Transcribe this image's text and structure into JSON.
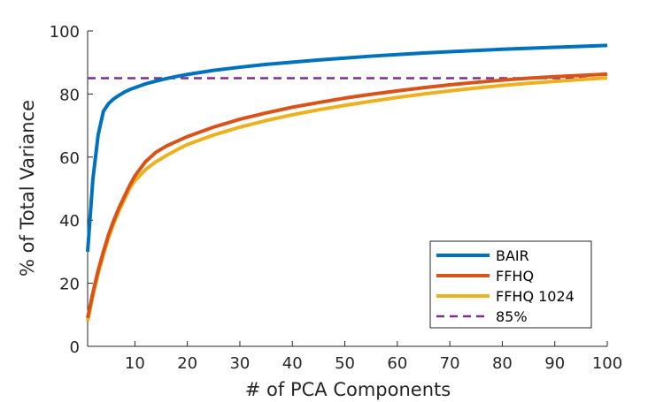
{
  "chart_data": {
    "type": "line",
    "title": "",
    "xlabel": "# of PCA Components",
    "ylabel": "% of Total Variance",
    "xlim": [
      1,
      100
    ],
    "ylim": [
      0,
      100
    ],
    "xticks": [
      10,
      20,
      30,
      40,
      50,
      60,
      70,
      80,
      90,
      100
    ],
    "yticks": [
      0,
      20,
      40,
      60,
      80,
      100
    ],
    "grid": false,
    "legend_position": "bottom-right",
    "series": [
      {
        "name": "BAIR",
        "color": "#0072BD",
        "style": "solid",
        "x": [
          1,
          2,
          3,
          4,
          5,
          6,
          7,
          8,
          9,
          10,
          12,
          14,
          16,
          18,
          20,
          25,
          30,
          35,
          40,
          45,
          50,
          55,
          60,
          65,
          70,
          75,
          80,
          85,
          90,
          95,
          100
        ],
        "y": [
          30,
          53,
          67,
          74.5,
          77,
          78.5,
          79.6,
          80.6,
          81.4,
          82,
          83.2,
          84.1,
          84.9,
          85.6,
          86.2,
          87.5,
          88.5,
          89.4,
          90.1,
          90.8,
          91.4,
          92,
          92.5,
          93,
          93.4,
          93.8,
          94.2,
          94.5,
          94.8,
          95.1,
          95.4
        ]
      },
      {
        "name": "FFHQ",
        "color": "#D95319",
        "style": "solid",
        "x": [
          1,
          2,
          3,
          4,
          5,
          6,
          7,
          8,
          9,
          10,
          12,
          14,
          16,
          18,
          20,
          25,
          30,
          35,
          40,
          45,
          50,
          55,
          60,
          65,
          70,
          75,
          80,
          85,
          90,
          95,
          100
        ],
        "y": [
          9,
          17,
          24,
          30,
          35.5,
          40,
          44,
          47.5,
          51,
          54,
          58.5,
          61.5,
          63.5,
          65,
          66.5,
          69.5,
          72,
          74,
          75.8,
          77.3,
          78.7,
          79.9,
          81,
          82,
          82.9,
          83.7,
          84.4,
          85,
          85.5,
          85.9,
          86.3
        ]
      },
      {
        "name": "FFHQ 1024",
        "color": "#EDB120",
        "style": "solid",
        "x": [
          1,
          2,
          3,
          4,
          5,
          6,
          7,
          8,
          9,
          10,
          12,
          14,
          16,
          18,
          20,
          25,
          30,
          35,
          40,
          45,
          50,
          55,
          60,
          65,
          70,
          75,
          80,
          85,
          90,
          95,
          100
        ],
        "y": [
          8,
          16,
          23,
          29,
          34.5,
          39,
          43,
          46.5,
          50,
          52.5,
          56,
          58.5,
          60.5,
          62.3,
          64,
          67,
          69.5,
          71.6,
          73.4,
          75,
          76.4,
          77.7,
          78.9,
          80,
          81,
          81.9,
          82.7,
          83.4,
          84,
          84.6,
          85.1
        ]
      },
      {
        "name": "85%",
        "color": "#7E2F8E",
        "style": "dashed",
        "x": [
          1,
          100
        ],
        "y": [
          85,
          85
        ]
      }
    ]
  }
}
